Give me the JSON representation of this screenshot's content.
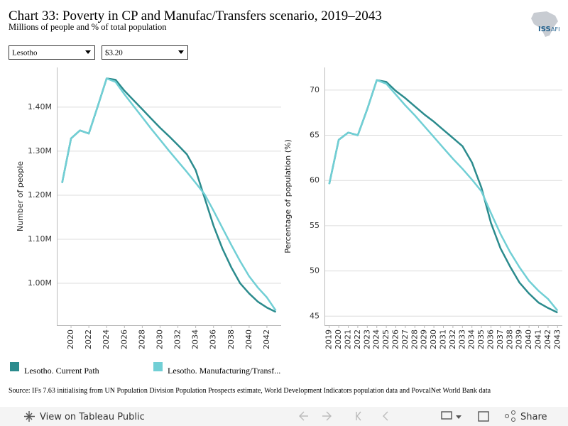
{
  "title": "Chart 33: Poverty in CP and Manufac/Transfers scenario, 2019–2043",
  "subtitle": "Millions of people and % of total population",
  "logo": {
    "main": "ISS",
    "sub": "AFI"
  },
  "filters": [
    "Lesotho",
    "$3.20"
  ],
  "source": "Source: IFs 7.63 initialising from UN Population Division Population Prospects estimate, World Development Indicators population data and PovcalNet World Bank data",
  "toolbar": {
    "view": "View on Tableau Public",
    "share": "Share"
  },
  "chart_data": [
    {
      "type": "line",
      "y_label": "Number of people",
      "x": [
        2019,
        2020,
        2021,
        2022,
        2023,
        2024,
        2025,
        2026,
        2027,
        2028,
        2029,
        2030,
        2031,
        2032,
        2033,
        2034,
        2035,
        2036,
        2037,
        2038,
        2039,
        2040,
        2041,
        2042,
        2043
      ],
      "xlim": [
        2018.4,
        2043.6
      ],
      "xticks": [
        2020,
        2022,
        2024,
        2026,
        2028,
        2030,
        2032,
        2034,
        2036,
        2038,
        2040,
        2042
      ],
      "ylim": [
        905000,
        1490000
      ],
      "yticks": [
        {
          "value": 1000000,
          "label": "1.00M"
        },
        {
          "value": 1100000,
          "label": "1.10M"
        },
        {
          "value": 1200000,
          "label": "1.20M"
        },
        {
          "value": 1300000,
          "label": "1.30M"
        },
        {
          "value": 1400000,
          "label": "1.40M"
        }
      ],
      "grid": true,
      "series": [
        {
          "name": "Lesotho. Current Path",
          "color": "#2b8b8d",
          "values": [
            1228000,
            1329000,
            1347000,
            1340000,
            1402000,
            1465000,
            1462000,
            1437000,
            1416000,
            1395000,
            1374000,
            1353000,
            1334000,
            1314000,
            1293000,
            1257000,
            1194000,
            1131000,
            1079000,
            1036000,
            1000000,
            977000,
            958000,
            945000,
            935000
          ]
        },
        {
          "name": "Lesotho. Manufacturing/Transf...",
          "color": "#71cfd5",
          "values": [
            1228000,
            1329000,
            1347000,
            1340000,
            1402000,
            1465000,
            1457000,
            1429000,
            1403000,
            1377000,
            1351000,
            1326000,
            1301000,
            1277000,
            1253000,
            1228000,
            1202000,
            1165000,
            1126000,
            1087000,
            1050000,
            1016000,
            990000,
            968000,
            938000
          ]
        }
      ]
    },
    {
      "type": "line",
      "y_label": "Percentage of population (%)",
      "x": [
        2019,
        2020,
        2021,
        2022,
        2023,
        2024,
        2025,
        2026,
        2027,
        2028,
        2029,
        2030,
        2031,
        2032,
        2033,
        2034,
        2035,
        2036,
        2037,
        2038,
        2039,
        2040,
        2041,
        2042,
        2043
      ],
      "xlim": [
        2018.5,
        2043.5
      ],
      "xticks": [
        2019,
        2020,
        2021,
        2022,
        2023,
        2024,
        2025,
        2026,
        2027,
        2028,
        2029,
        2030,
        2031,
        2032,
        2033,
        2034,
        2035,
        2036,
        2037,
        2038,
        2039,
        2040,
        2041,
        2042,
        2043
      ],
      "ylim": [
        44,
        72.5
      ],
      "yticks": [
        45,
        50,
        55,
        60,
        65,
        70
      ],
      "grid": true,
      "series": [
        {
          "name": "Lesotho. Current Path",
          "color": "#2b8b8d",
          "values": [
            59.6,
            64.5,
            65.3,
            65.0,
            67.9,
            71.1,
            70.9,
            69.9,
            69.1,
            68.2,
            67.3,
            66.5,
            65.6,
            64.7,
            63.8,
            62.0,
            59.2,
            55.3,
            52.5,
            50.5,
            48.7,
            47.5,
            46.5,
            45.9,
            45.4
          ]
        },
        {
          "name": "Lesotho. Manufacturing/Transf...",
          "color": "#71cfd5",
          "values": [
            59.6,
            64.5,
            65.3,
            65.0,
            67.9,
            71.1,
            70.7,
            69.5,
            68.3,
            67.2,
            66.0,
            64.8,
            63.6,
            62.4,
            61.3,
            60.1,
            58.8,
            56.4,
            54.1,
            52.1,
            50.4,
            48.9,
            47.8,
            46.9,
            45.6
          ]
        }
      ]
    }
  ]
}
